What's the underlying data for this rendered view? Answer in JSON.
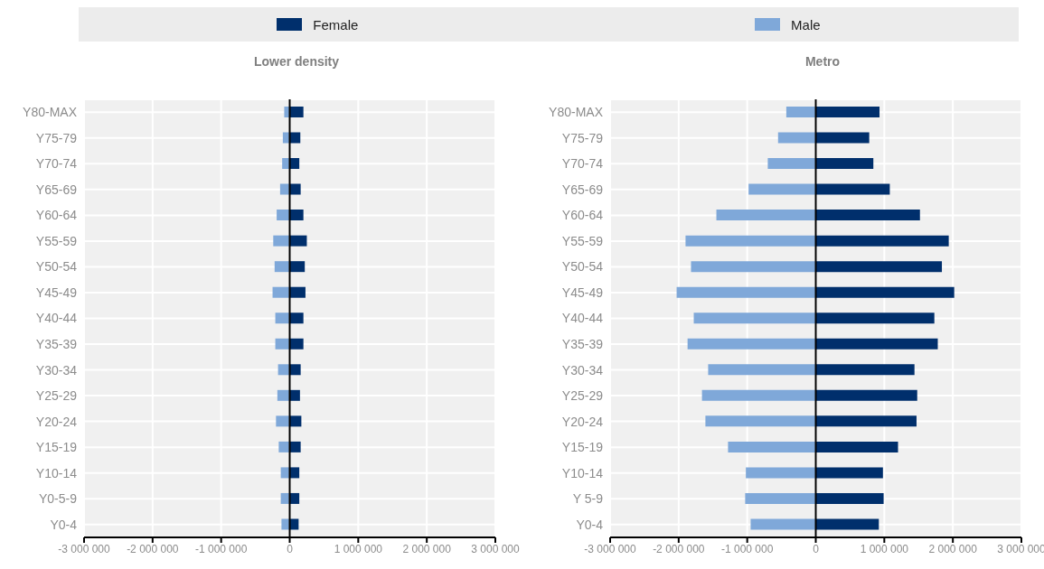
{
  "chart_data": [
    {
      "type": "bar",
      "orientation": "horizontal",
      "stacked": true,
      "title": "Lower density",
      "legend": "top",
      "grid": true,
      "categories": [
        "Y80-MAX",
        "Y75-79",
        "Y70-74",
        "Y65-69",
        "Y60-64",
        "Y55-59",
        "Y50-54",
        "Y45-49",
        "Y40-44",
        "Y35-39",
        "Y30-34",
        "Y25-29",
        "Y20-24",
        "Y15-19",
        "Y10-14",
        "Y0-5-9",
        "Y0-4"
      ],
      "series": [
        {
          "name": "Female",
          "color": "#002f6c",
          "values": [
            200000,
            155000,
            140000,
            160000,
            200000,
            250000,
            220000,
            230000,
            200000,
            200000,
            160000,
            150000,
            170000,
            160000,
            140000,
            140000,
            130000
          ]
        },
        {
          "name": "Male",
          "color": "#7fa8d9",
          "values": [
            -80000,
            -100000,
            -110000,
            -140000,
            -190000,
            -240000,
            -220000,
            -250000,
            -210000,
            -210000,
            -170000,
            -180000,
            -200000,
            -160000,
            -130000,
            -130000,
            -120000
          ]
        }
      ],
      "xlim": [
        -3000000,
        3000000
      ],
      "xticks": [
        {
          "value": -3000000,
          "label": "-3 000 000"
        },
        {
          "value": -2000000,
          "label": "-2 000 000"
        },
        {
          "value": -1000000,
          "label": "-1 000 000"
        },
        0,
        {
          "value": 1000000,
          "label": "1 000 000"
        },
        {
          "value": 2000000,
          "label": "2 000 000"
        },
        {
          "value": 3000000,
          "label": "3 000 000"
        }
      ]
    },
    {
      "type": "bar",
      "orientation": "horizontal",
      "stacked": true,
      "title": "Metro",
      "grid": true,
      "categories": [
        "Y80-MAX",
        "Y75-79",
        "Y70-74",
        "Y65-69",
        "Y60-64",
        "Y55-59",
        "Y50-54",
        "Y45-49",
        "Y40-44",
        "Y35-39",
        "Y30-34",
        "Y25-29",
        "Y20-24",
        "Y15-19",
        "Y10-14",
        "Y 5-9",
        "Y0-4"
      ],
      "series": [
        {
          "color": "#002f6c",
          "values": [
            930000,
            780000,
            840000,
            1080000,
            1520000,
            1940000,
            1840000,
            2020000,
            1730000,
            1780000,
            1440000,
            1480000,
            1470000,
            1200000,
            980000,
            990000,
            920000
          ]
        },
        {
          "color": "#7fa8d9",
          "values": [
            -430000,
            -550000,
            -700000,
            -980000,
            -1450000,
            -1900000,
            -1820000,
            -2030000,
            -1780000,
            -1870000,
            -1570000,
            -1660000,
            -1610000,
            -1280000,
            -1020000,
            -1030000,
            -950000
          ]
        }
      ],
      "xlim": [
        -3000000,
        3000000
      ],
      "xticks": [
        {
          "value": -3000000,
          "label": "-3 000 000"
        },
        {
          "value": -2000000,
          "label": "-2 000 000"
        },
        {
          "value": -1000000,
          "label": "-1 000 000"
        },
        0,
        {
          "value": 1000000,
          "label": "1 000 000"
        },
        {
          "value": 2000000,
          "label": "2 000 000"
        },
        {
          "value": 3000000,
          "label": "3 000 000"
        }
      ]
    }
  ]
}
